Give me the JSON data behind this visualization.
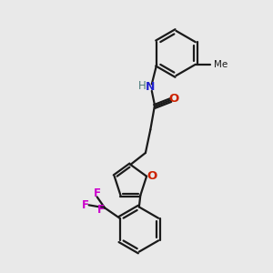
{
  "background_color": "#e9e9e9",
  "bond_color": "#1a1a1a",
  "bond_width": 1.6,
  "N_color": "#2222cc",
  "O_color": "#cc2200",
  "F_color": "#cc00cc",
  "H_color": "#4a7a7a",
  "C_color": "#1a1a1a",
  "xlim": [
    0,
    10
  ],
  "ylim": [
    0,
    10
  ]
}
